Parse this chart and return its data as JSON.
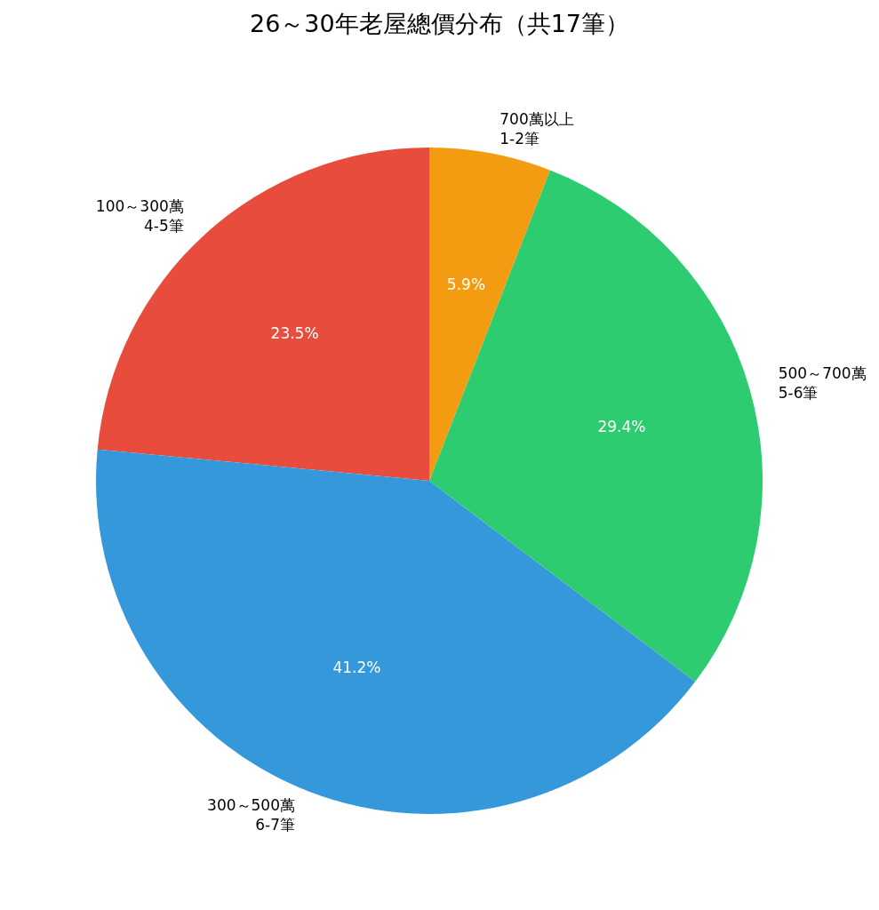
{
  "chart_data": {
    "type": "pie",
    "title": "26～30年老屋總價分布（共17筆）",
    "categories": [
      "100～300萬\n4-5筆",
      "300～500萬\n6-7筆",
      "500～700萬\n5-6筆",
      "700萬以上\n1-2筆"
    ],
    "values": [
      23.5,
      41.2,
      29.4,
      5.9
    ],
    "colors": [
      "#e74c3c",
      "#3498db",
      "#2ecc71",
      "#f39c12"
    ],
    "value_labels": [
      "23.5%",
      "41.2%",
      "29.4%",
      "5.9%"
    ]
  }
}
